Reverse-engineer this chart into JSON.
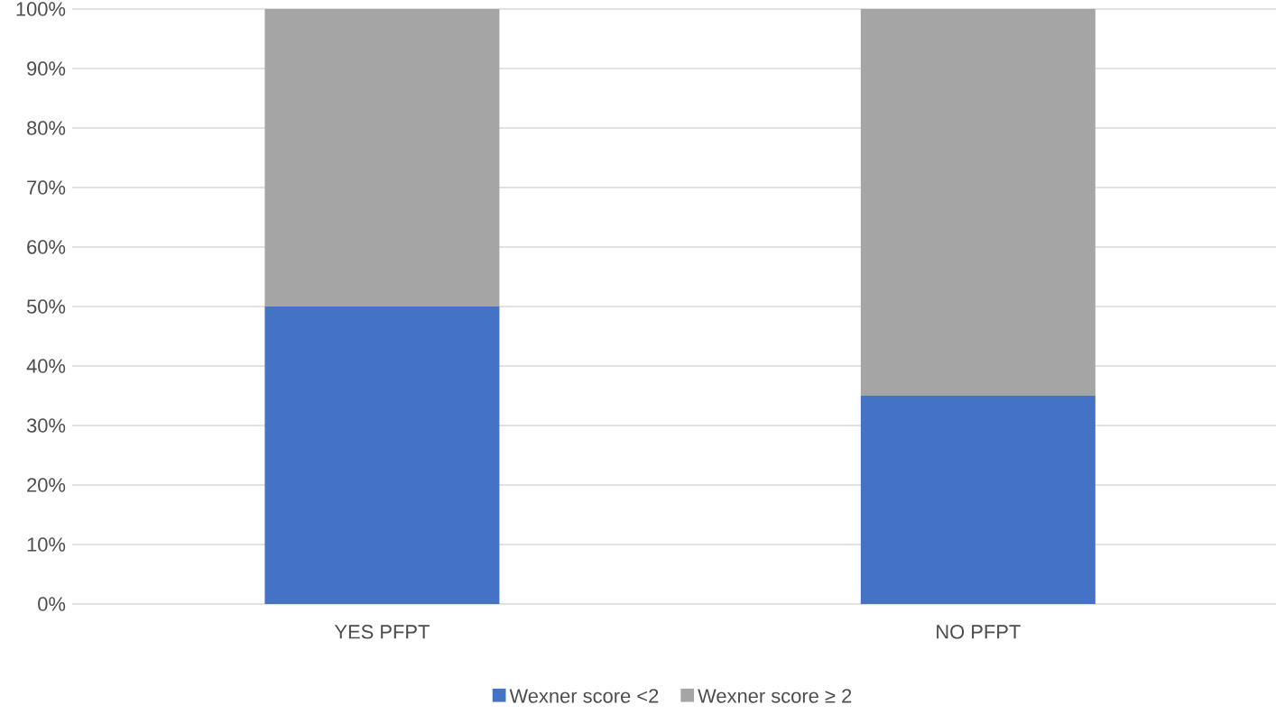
{
  "chart_data": {
    "type": "bar",
    "stacked": true,
    "categories": [
      "YES PFPT",
      "NO PFPT"
    ],
    "series": [
      {
        "name": "Wexner score <2",
        "color": "#4472c4",
        "values": [
          50,
          35
        ]
      },
      {
        "name": "Wexner score ≥ 2",
        "color": "#a5a5a5",
        "values": [
          50,
          65
        ]
      }
    ],
    "ylim": [
      0,
      100
    ],
    "yticks": [
      {
        "value": 0,
        "label": "0%"
      },
      {
        "value": 10,
        "label": "10%"
      },
      {
        "value": 20,
        "label": "20%"
      },
      {
        "value": 30,
        "label": "30%"
      },
      {
        "value": 40,
        "label": "40%"
      },
      {
        "value": 50,
        "label": "50%"
      },
      {
        "value": 60,
        "label": "60%"
      },
      {
        "value": 70,
        "label": "70%"
      },
      {
        "value": 80,
        "label": "80%"
      },
      {
        "value": 90,
        "label": "90%"
      },
      {
        "value": 100,
        "label": "100%"
      }
    ],
    "grid": "y",
    "legend": "bottom"
  }
}
